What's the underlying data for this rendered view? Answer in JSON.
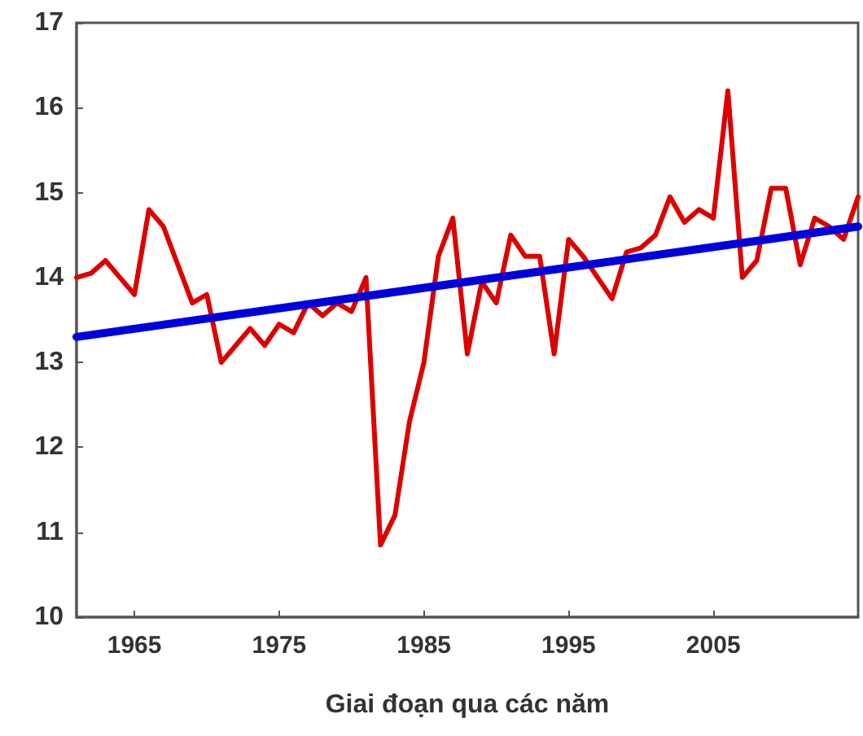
{
  "chart_data": {
    "type": "line",
    "xlabel": "Giai đoạn qua các năm",
    "xlim": [
      1961,
      2015
    ],
    "xticks": [
      1965,
      1975,
      1985,
      1995,
      2005
    ],
    "ylim": [
      10,
      17
    ],
    "yticks": [
      10,
      11,
      12,
      13,
      14,
      15,
      16,
      17
    ],
    "grid": false,
    "marker": "none",
    "line_style": "solid",
    "series": [
      {
        "color": "#dd0000",
        "x": [
          1961,
          1962,
          1963,
          1964,
          1965,
          1966,
          1967,
          1968,
          1969,
          1970,
          1971,
          1972,
          1973,
          1974,
          1975,
          1976,
          1977,
          1978,
          1979,
          1980,
          1981,
          1982,
          1983,
          1984,
          1985,
          1986,
          1987,
          1988,
          1989,
          1990,
          1991,
          1992,
          1993,
          1994,
          1995,
          1996,
          1997,
          1998,
          1999,
          2000,
          2001,
          2002,
          2003,
          2004,
          2005,
          2006,
          2007,
          2008,
          2009,
          2010,
          2011,
          2012,
          2013,
          2014,
          2015
        ],
        "values": [
          14.0,
          14.05,
          14.2,
          14.0,
          13.8,
          14.8,
          14.6,
          14.15,
          13.7,
          13.8,
          13.0,
          13.2,
          13.4,
          13.2,
          13.45,
          13.35,
          13.7,
          13.55,
          13.7,
          13.6,
          14.0,
          10.85,
          11.2,
          12.3,
          13.0,
          14.25,
          14.7,
          13.1,
          13.95,
          13.7,
          14.5,
          14.25,
          14.25,
          13.1,
          14.45,
          14.25,
          14.0,
          13.75,
          14.3,
          14.35,
          14.5,
          14.95,
          14.65,
          14.8,
          14.7,
          16.2,
          14.0,
          14.2,
          15.05,
          15.05,
          14.15,
          14.7,
          14.6,
          14.45,
          14.95
        ]
      },
      {
        "type": "line",
        "color": "#0000dd",
        "x": [
          1961,
          2015
        ],
        "values": [
          13.3,
          14.6
        ]
      }
    ]
  }
}
